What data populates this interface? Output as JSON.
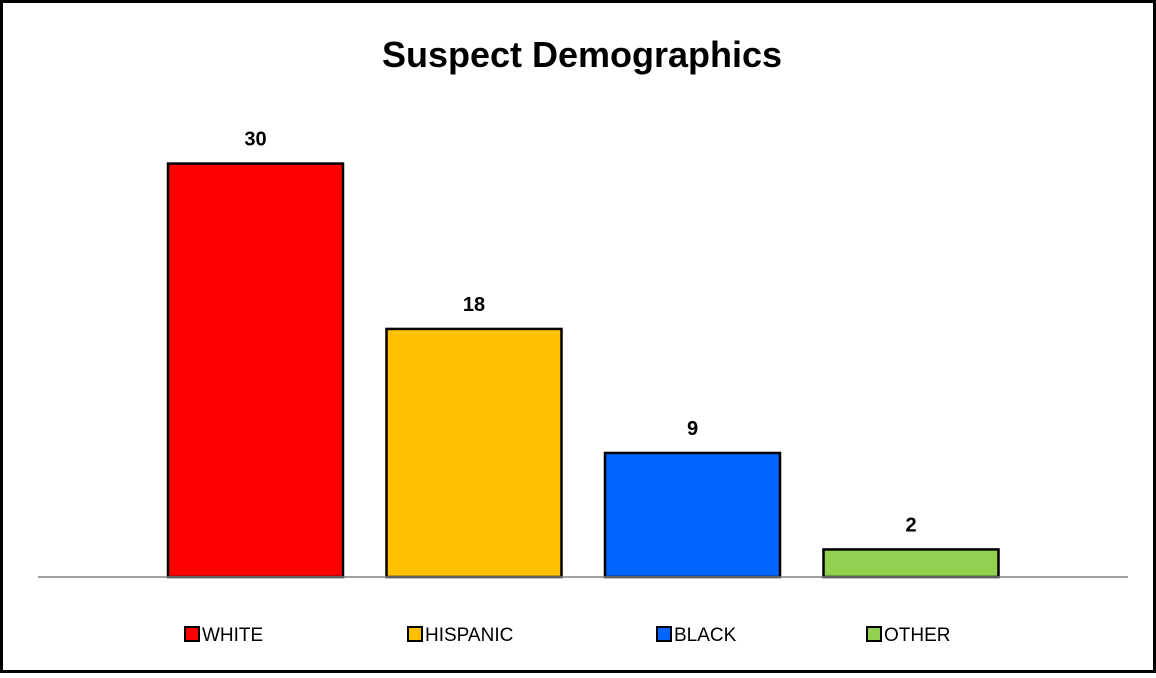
{
  "chart_data": {
    "type": "bar",
    "title": "Suspect Demographics",
    "categories": [
      "WHITE",
      "HISPANIC",
      "BLACK",
      "OTHER"
    ],
    "values": [
      30,
      18,
      9,
      2
    ],
    "colors": [
      "#ff0000",
      "#ffc000",
      "#0066ff",
      "#92d050"
    ],
    "data_labels": [
      "30",
      "18",
      "9",
      "2"
    ],
    "ylim": [
      0,
      32
    ],
    "grid": false,
    "legend": "bottom",
    "xlabel": "",
    "ylabel": ""
  }
}
